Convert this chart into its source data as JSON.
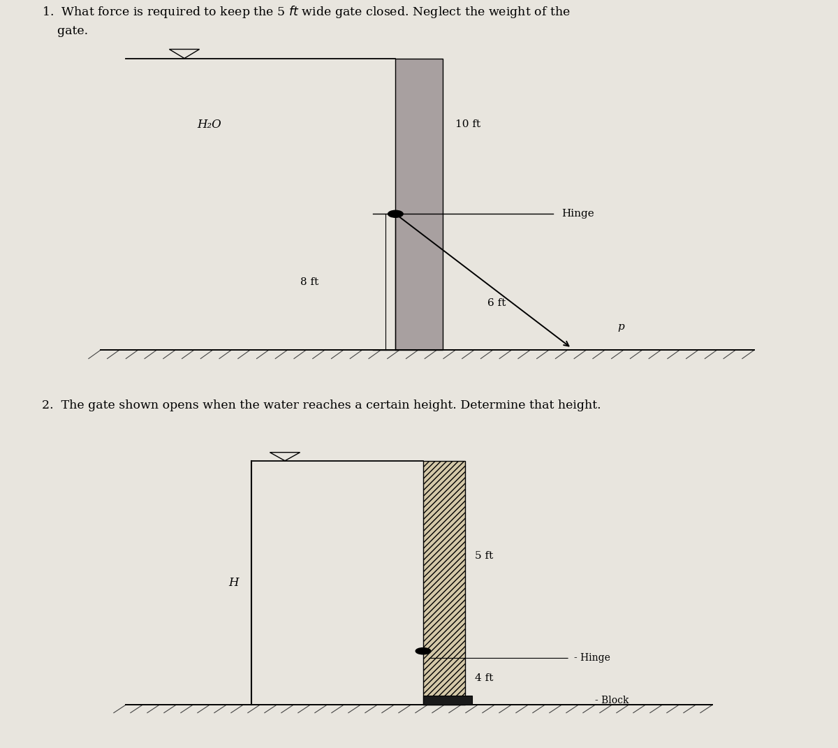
{
  "bg_color": "#e8e5de",
  "diagram1": {
    "gate_color": "#a09090",
    "gate_fill": "#b0a0a0",
    "label_10ft": "10 ft",
    "label_8ft": "8 ft",
    "label_6ft": "6 ft",
    "label_H2O": "H₂O",
    "label_Hinge": "Hinge",
    "label_P": "p"
  },
  "diagram2": {
    "gate_hatch_color": "#c8b898",
    "label_5ft": "5 ft",
    "label_4ft": "4 ft",
    "label_H": "H",
    "label_Hinge": "Hinge",
    "label_Block": "Block"
  },
  "q1_line1": "1.  What force is required to keep the 5 $ft$ wide gate closed. Neglect the weight of the",
  "q1_line2": "    gate.",
  "q2_line1": "2.  The gate shown opens when the water reaches a certain height. Determine that height."
}
